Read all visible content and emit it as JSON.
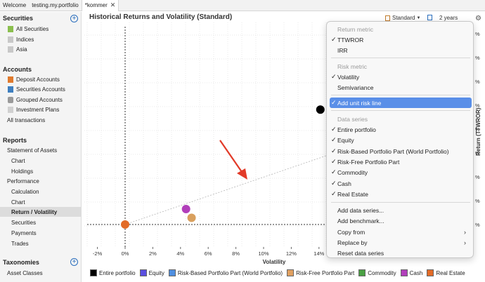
{
  "tabs": [
    {
      "label": "Welcome"
    },
    {
      "label": "testing.my.portfolio"
    },
    {
      "label": "*kommer",
      "close": "✕"
    }
  ],
  "sidebar": {
    "securities_header": "Securities",
    "securities_items": [
      {
        "label": "All Securities",
        "icon": "folder-green-icon"
      },
      {
        "label": "Indices",
        "icon": "folder-grey-icon"
      },
      {
        "label": "Asia",
        "icon": "folder-grey-icon"
      }
    ],
    "accounts_header": "Accounts",
    "accounts_items": [
      {
        "label": "Deposit Accounts",
        "icon": "deposit-icon"
      },
      {
        "label": "Securities Accounts",
        "icon": "securities-account-icon"
      },
      {
        "label": "Grouped Accounts",
        "icon": "grouped-icon"
      },
      {
        "label": "Investment Plans",
        "icon": "plan-icon"
      },
      {
        "label": "All transactions"
      }
    ],
    "reports_header": "Reports",
    "reports_items": [
      {
        "label": "Statement of Assets"
      },
      {
        "label": "Chart"
      },
      {
        "label": "Holdings"
      },
      {
        "label": "Performance"
      },
      {
        "label": "Calculation"
      },
      {
        "label": "Chart"
      },
      {
        "label": "Return / Volatility"
      },
      {
        "label": "Securities"
      },
      {
        "label": "Payments"
      },
      {
        "label": "Trades"
      }
    ],
    "taxonomies_header": "Taxonomies",
    "taxonomies_items": [
      {
        "label": "Asset Classes"
      }
    ],
    "add_symbol": "+"
  },
  "chart_header": {
    "title": "Historical Returns and Volatility (Standard)",
    "config_label": "Standard",
    "period_label": "2 years"
  },
  "chart_data": {
    "type": "scatter",
    "xlabel": "Volatility",
    "ylabel": "Return (TTWROR)",
    "x_ticks": [
      "-2%",
      "0%",
      "2%",
      "4%",
      "6%",
      "8%",
      "10%",
      "12%",
      "14%"
    ],
    "xlim": [
      -3,
      15
    ],
    "points": [
      {
        "name": "Entire portfolio",
        "x": 14.1,
        "y": 0.52,
        "color": "#000000"
      },
      {
        "name": "Cash",
        "x": 4.4,
        "y": 0.07,
        "color": "#b13fba"
      },
      {
        "name": "Risk-Free Portfolio Part",
        "x": 4.8,
        "y": 0.03,
        "color": "#d9a05e"
      },
      {
        "name": "Real Estate",
        "x": 0.0,
        "y": 0.0,
        "color": "#e26b27"
      }
    ],
    "right_ticks": [
      "%",
      "%",
      "%",
      "%",
      "%",
      "%",
      "%",
      "%",
      "%"
    ],
    "grid": true
  },
  "legend": [
    {
      "name": "Entire portfolio",
      "color": "#000000"
    },
    {
      "name": "Equity",
      "color": "#5b4fe0"
    },
    {
      "name": "Risk-Based Portfolio Part (World Portfolio)",
      "color": "#4f8fe0"
    },
    {
      "name": "Risk-Free Portfolio Part",
      "color": "#e0a060"
    },
    {
      "name": "Commodity",
      "color": "#4aa043"
    },
    {
      "name": "Cash",
      "color": "#b13fba"
    },
    {
      "name": "Real Estate",
      "color": "#e26b27"
    }
  ],
  "menu": {
    "return_header": "Return metric",
    "ttwror": "TTWROR",
    "irr": "IRR",
    "risk_header": "Risk metric",
    "volatility": "Volatility",
    "semivariance": "Semivariance",
    "unit_risk": "Add unit risk line",
    "data_header": "Data series",
    "series": [
      "Entire portfolio",
      "Equity",
      "Risk-Based Portfolio Part (World Portfolio)",
      "Risk-Free Portfolio Part",
      "Commodity",
      "Cash",
      "Real Estate"
    ],
    "add_series": "Add data series...",
    "add_benchmark": "Add benchmark...",
    "copy_from": "Copy from",
    "replace_by": "Replace by",
    "reset": "Reset data series",
    "check": "✓",
    "submenu": "›"
  }
}
